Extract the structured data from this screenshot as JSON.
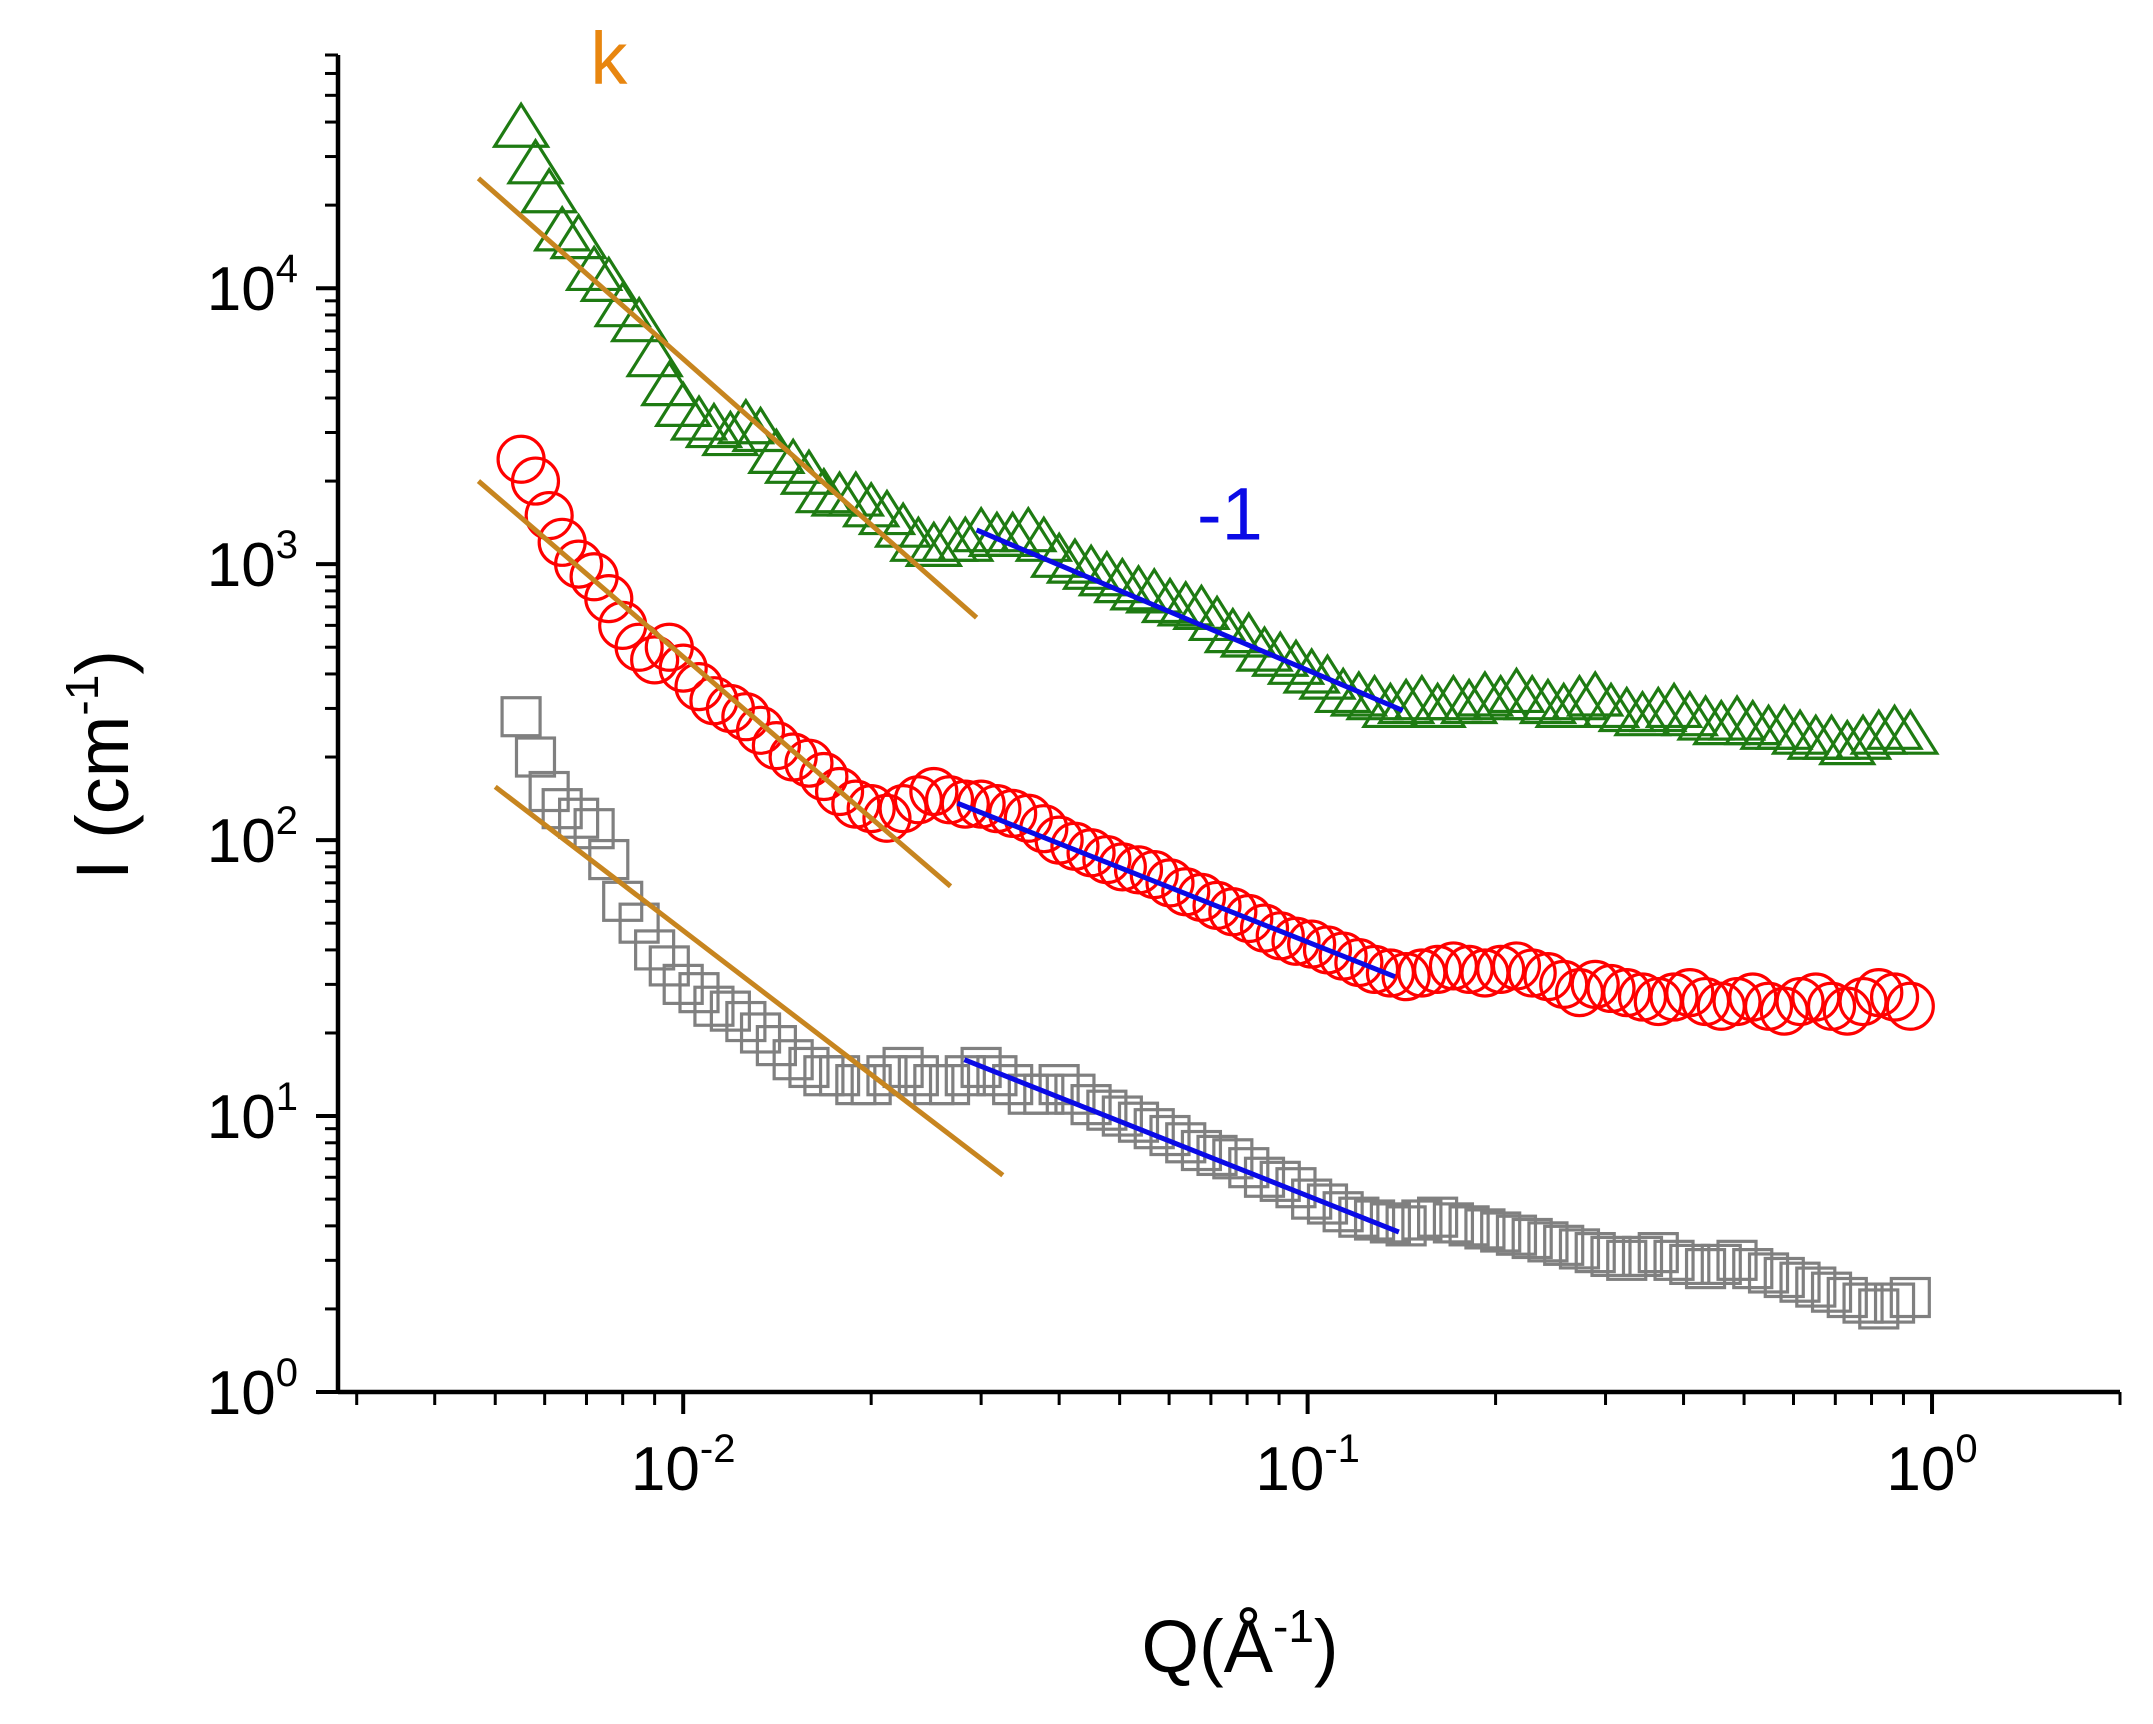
{
  "chart_data": {
    "type": "scatter",
    "title": "",
    "xlabel": {
      "base": "Q(Å",
      "exponent": "-1",
      "close": ")"
    },
    "ylabel": {
      "base": "I (cm",
      "exponent": "-1",
      "close": ")"
    },
    "xscale": "log",
    "yscale": "log",
    "xlim": [
      0.0028,
      2.0
    ],
    "ylim": [
      1,
      70000
    ],
    "grid": false,
    "x_ticks": [
      {
        "value": 0.01,
        "base": "10",
        "exp": "-2"
      },
      {
        "value": 0.1,
        "base": "10",
        "exp": "-1"
      },
      {
        "value": 1,
        "base": "10",
        "exp": "0"
      }
    ],
    "y_ticks": [
      {
        "value": 1,
        "base": "10",
        "exp": "0"
      },
      {
        "value": 10,
        "base": "10",
        "exp": "1"
      },
      {
        "value": 100,
        "base": "10",
        "exp": "2"
      },
      {
        "value": 1000,
        "base": "10",
        "exp": "3"
      },
      {
        "value": 10000,
        "base": "10",
        "exp": "4"
      }
    ],
    "series": [
      {
        "marker": "triangle",
        "color": "#1e7b12",
        "x": [
          0.0055,
          0.0058,
          0.0061,
          0.0064,
          0.0068,
          0.0072,
          0.0076,
          0.008,
          0.0085,
          0.009,
          0.0095,
          0.01,
          0.0106,
          0.0112,
          0.0119,
          0.0126,
          0.0133,
          0.0141,
          0.015,
          0.0159,
          0.0168,
          0.0178,
          0.0189,
          0.02,
          0.0212,
          0.0225,
          0.0238,
          0.0252,
          0.0267,
          0.0283,
          0.03,
          0.0318,
          0.0337,
          0.0357,
          0.0378,
          0.04,
          0.0424,
          0.045,
          0.0477,
          0.0505,
          0.0536,
          0.0568,
          0.0602,
          0.0638,
          0.0676,
          0.0716,
          0.0759,
          0.0805,
          0.0853,
          0.0904,
          0.0958,
          0.1015,
          0.1076,
          0.114,
          0.1208,
          0.128,
          0.1357,
          0.1438,
          0.1524,
          0.1615,
          0.1712,
          0.1814,
          0.1923,
          0.2038,
          0.216,
          0.2289,
          0.2426,
          0.2571,
          0.2725,
          0.2888,
          0.3061,
          0.3244,
          0.3438,
          0.3644,
          0.3862,
          0.4093,
          0.4338,
          0.4597,
          0.4872,
          0.5163,
          0.5472,
          0.5799,
          0.6146,
          0.6514,
          0.6903,
          0.7316,
          0.7754,
          0.8217,
          0.8709,
          0.923
        ],
        "y": [
          38000,
          28000,
          22000,
          16000,
          15000,
          11500,
          10500,
          8500,
          7500,
          5600,
          4400,
          3700,
          3300,
          3100,
          2900,
          3200,
          3000,
          2500,
          2300,
          2100,
          1800,
          1750,
          1750,
          1600,
          1500,
          1350,
          1200,
          1150,
          1200,
          1200,
          1300,
          1250,
          1250,
          1300,
          1200,
          1050,
          1000,
          950,
          900,
          850,
          800,
          780,
          720,
          700,
          680,
          620,
          560,
          540,
          480,
          460,
          430,
          400,
          380,
          340,
          330,
          320,
          300,
          310,
          320,
          300,
          320,
          310,
          330,
          320,
          340,
          320,
          310,
          300,
          320,
          330,
          300,
          290,
          280,
          290,
          300,
          280,
          270,
          260,
          270,
          260,
          250,
          250,
          240,
          230,
          230,
          220,
          230,
          240,
          250,
          240
        ]
      },
      {
        "marker": "circle",
        "color": "#ff0000",
        "x": [
          0.0055,
          0.0058,
          0.0061,
          0.0064,
          0.0068,
          0.0072,
          0.0076,
          0.008,
          0.0085,
          0.009,
          0.0095,
          0.01,
          0.0106,
          0.0112,
          0.0119,
          0.0126,
          0.0133,
          0.0141,
          0.015,
          0.0159,
          0.0168,
          0.0178,
          0.0189,
          0.02,
          0.0212,
          0.0225,
          0.0238,
          0.0252,
          0.0267,
          0.0283,
          0.03,
          0.0318,
          0.0337,
          0.0357,
          0.0378,
          0.04,
          0.0424,
          0.045,
          0.0477,
          0.0505,
          0.0536,
          0.0568,
          0.0602,
          0.0638,
          0.0676,
          0.0716,
          0.0759,
          0.0805,
          0.0853,
          0.0904,
          0.0958,
          0.1015,
          0.1076,
          0.114,
          0.1208,
          0.128,
          0.1357,
          0.1438,
          0.1524,
          0.1615,
          0.1712,
          0.1814,
          0.1923,
          0.2038,
          0.216,
          0.2289,
          0.2426,
          0.2571,
          0.2725,
          0.2888,
          0.3061,
          0.3244,
          0.3438,
          0.3644,
          0.3862,
          0.4093,
          0.4338,
          0.4597,
          0.4872,
          0.5163,
          0.5472,
          0.5799,
          0.6146,
          0.6514,
          0.6903,
          0.7316,
          0.7754,
          0.8217,
          0.8709,
          0.923
        ],
        "y": [
          2400,
          2000,
          1500,
          1200,
          1000,
          900,
          750,
          600,
          500,
          450,
          500,
          420,
          360,
          320,
          300,
          280,
          250,
          220,
          200,
          190,
          170,
          150,
          135,
          130,
          120,
          130,
          140,
          150,
          140,
          135,
          135,
          130,
          125,
          120,
          110,
          100,
          95,
          90,
          85,
          80,
          78,
          75,
          70,
          65,
          62,
          58,
          55,
          52,
          48,
          45,
          43,
          42,
          40,
          38,
          36,
          34,
          33,
          32,
          33,
          34,
          35,
          34,
          33,
          34,
          35,
          33,
          32,
          30,
          28,
          30,
          29,
          28,
          27,
          26,
          27,
          28,
          26,
          25,
          26,
          27,
          25,
          24,
          26,
          27,
          25,
          24,
          26,
          28,
          27,
          25
        ]
      },
      {
        "marker": "square",
        "color": "#808080",
        "x": [
          0.0055,
          0.0058,
          0.0061,
          0.0064,
          0.0068,
          0.0072,
          0.0076,
          0.008,
          0.0085,
          0.009,
          0.0095,
          0.01,
          0.0106,
          0.0112,
          0.0119,
          0.0126,
          0.0133,
          0.0141,
          0.015,
          0.0159,
          0.0168,
          0.0178,
          0.0189,
          0.02,
          0.0212,
          0.0225,
          0.0238,
          0.0252,
          0.0267,
          0.0283,
          0.03,
          0.0318,
          0.0337,
          0.0357,
          0.0378,
          0.04,
          0.0424,
          0.045,
          0.0477,
          0.0505,
          0.0536,
          0.0568,
          0.0602,
          0.0638,
          0.0676,
          0.0716,
          0.0759,
          0.0805,
          0.0853,
          0.0904,
          0.0958,
          0.1015,
          0.1076,
          0.114,
          0.1208,
          0.128,
          0.1357,
          0.1438,
          0.1524,
          0.1615,
          0.1712,
          0.1814,
          0.1923,
          0.2038,
          0.216,
          0.2289,
          0.2426,
          0.2571,
          0.2725,
          0.2888,
          0.3061,
          0.3244,
          0.3438,
          0.3644,
          0.3862,
          0.4093,
          0.4338,
          0.4597,
          0.4872,
          0.5163,
          0.5472,
          0.5799,
          0.6146,
          0.6514,
          0.6903,
          0.7316,
          0.7754,
          0.8217,
          0.8709,
          0.923
        ],
        "y": [
          280,
          200,
          150,
          130,
          120,
          110,
          85,
          60,
          50,
          40,
          35,
          30,
          28,
          25,
          24,
          22,
          20,
          18,
          16,
          15,
          14,
          14,
          13,
          13,
          14,
          15,
          14,
          13,
          13,
          14,
          15,
          14,
          13,
          12,
          12,
          13,
          12,
          11,
          10.5,
          10,
          9.5,
          9,
          8.5,
          8,
          7.5,
          7.2,
          7,
          6.5,
          6,
          5.8,
          5.5,
          5,
          4.8,
          4.5,
          4.3,
          4.2,
          4.1,
          4,
          4.2,
          4.3,
          4.1,
          4,
          3.9,
          3.8,
          3.7,
          3.6,
          3.5,
          3.4,
          3.3,
          3.2,
          3.1,
          3,
          3.1,
          3.2,
          3,
          2.9,
          2.8,
          2.9,
          3,
          2.8,
          2.7,
          2.6,
          2.5,
          2.4,
          2.3,
          2.2,
          2.1,
          2,
          2.1,
          2.2
        ]
      }
    ],
    "fit_lines": [
      {
        "color": "#c7851f",
        "x": [
          0.0047,
          0.0295
        ],
        "y": [
          25000,
          640
        ]
      },
      {
        "color": "#c7851f",
        "x": [
          0.0047,
          0.0268
        ],
        "y": [
          2000,
          68
        ]
      },
      {
        "color": "#c7851f",
        "x": [
          0.005,
          0.0325
        ],
        "y": [
          156,
          6.1
        ]
      },
      {
        "color": "#0a0ae6",
        "x": [
          0.0295,
          0.142
        ],
        "y": [
          1330,
          295
        ]
      },
      {
        "color": "#0a0ae6",
        "x": [
          0.0275,
          0.138
        ],
        "y": [
          136,
          32
        ]
      },
      {
        "color": "#0a0ae6",
        "x": [
          0.0282,
          0.14
        ],
        "y": [
          16,
          3.8
        ]
      }
    ],
    "annotations": [
      {
        "text": "k",
        "color": "#e8860f",
        "x": 0.0071,
        "y": 55000
      },
      {
        "text": "-1",
        "color": "#0a0ae6",
        "x": 0.0665,
        "y": 1230
      }
    ]
  }
}
